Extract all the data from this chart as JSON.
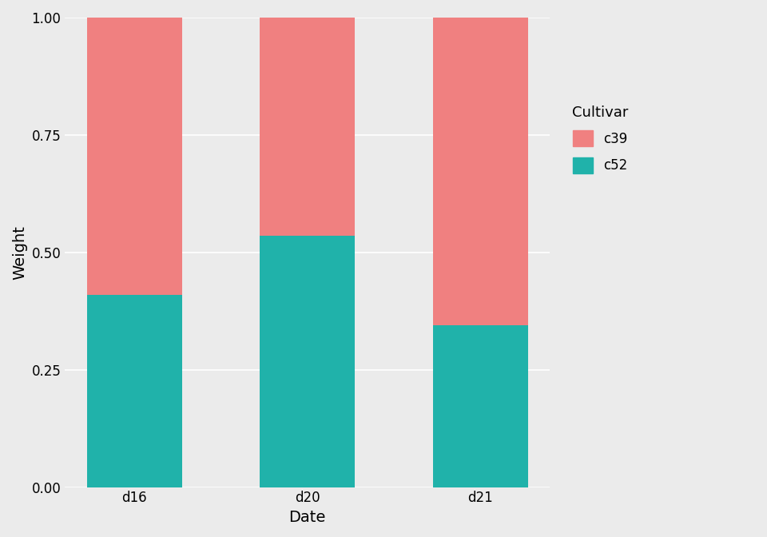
{
  "categories": [
    "d16",
    "d20",
    "d21"
  ],
  "c52_values": [
    0.41,
    0.535,
    0.345
  ],
  "c39_values": [
    0.59,
    0.465,
    0.655
  ],
  "color_c39": "#F08080",
  "color_c52": "#20B2AA",
  "xlabel": "Date",
  "ylabel": "Weight",
  "ylim": [
    0,
    1.0
  ],
  "yticks": [
    0.0,
    0.25,
    0.5,
    0.75,
    1.0
  ],
  "legend_title": "Cultivar",
  "background_color": "#EBEBEB",
  "panel_background": "#EBEBEB",
  "bar_width": 0.55,
  "axis_label_fontsize": 14,
  "tick_fontsize": 12,
  "legend_fontsize": 12
}
